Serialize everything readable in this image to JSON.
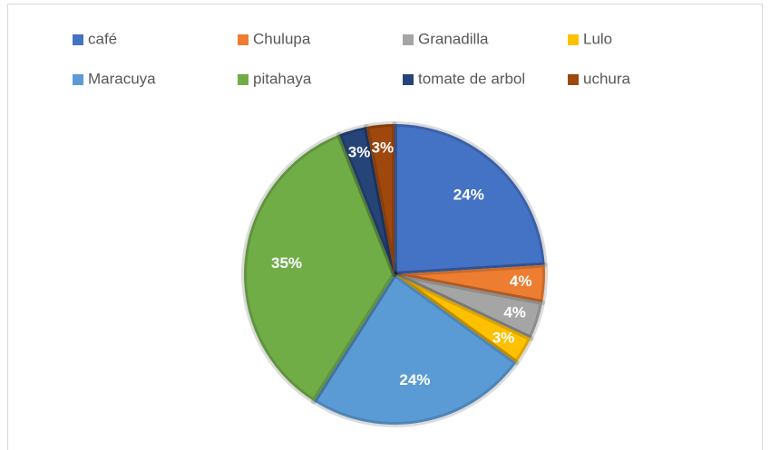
{
  "chart_data": {
    "type": "pie",
    "categories": [
      "café",
      "Chulupa",
      "Granadilla",
      "Lulo",
      "Maracuya",
      "pitahaya",
      "tomate de arbol",
      "uchura"
    ],
    "values": [
      24,
      4,
      4,
      3,
      24,
      35,
      3,
      3
    ],
    "value_labels": [
      "24%",
      "4%",
      "4%",
      "3%",
      "24%",
      "35%",
      "3%",
      "3%"
    ],
    "colors": [
      "#4472c4",
      "#ed7d31",
      "#a5a5a5",
      "#ffc000",
      "#5b9bd5",
      "#70ad47",
      "#264478",
      "#9e480e"
    ],
    "legend": "top"
  }
}
